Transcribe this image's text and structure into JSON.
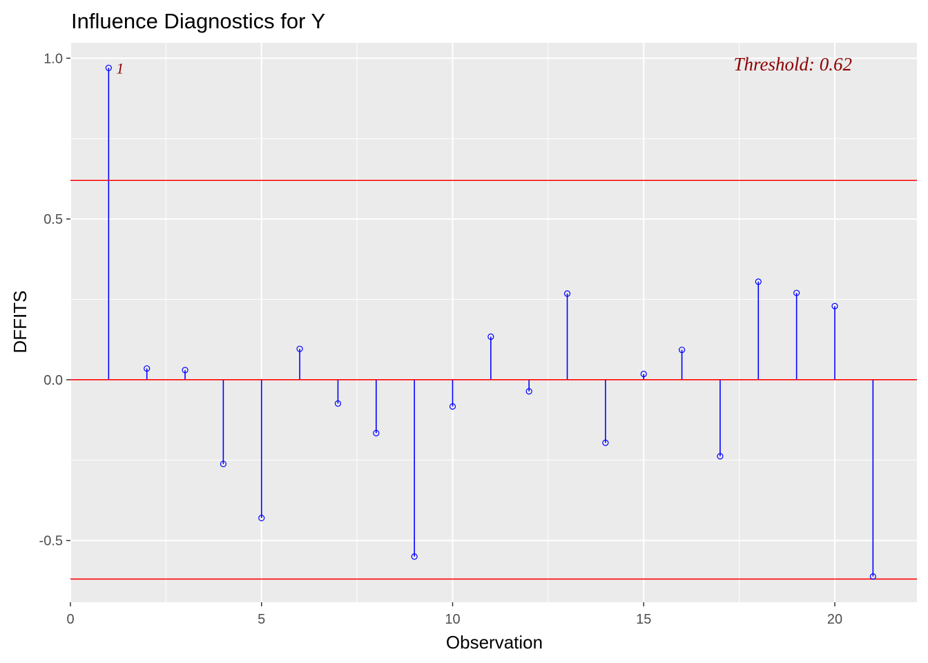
{
  "chart_data": {
    "type": "scatter",
    "subtype": "lollipop",
    "title": "Influence Diagnostics for Y",
    "xlabel": "Observation",
    "ylabel": "DFFITS",
    "xlim": [
      0,
      22.15
    ],
    "ylim": [
      -0.692,
      1.048
    ],
    "x_ticks": [
      0,
      5,
      10,
      15,
      20
    ],
    "x_tick_labels": [
      "0",
      "5",
      "10",
      "15",
      "20"
    ],
    "y_ticks": [
      -0.5,
      0.0,
      0.5,
      1.0
    ],
    "y_tick_labels": [
      "-0.5",
      "0.0",
      "0.5",
      "1.0"
    ],
    "x": [
      1,
      2,
      3,
      4,
      5,
      6,
      7,
      8,
      9,
      10,
      11,
      12,
      13,
      14,
      15,
      16,
      17,
      18,
      19,
      20,
      21
    ],
    "values": [
      0.97,
      0.035,
      0.03,
      -0.262,
      -0.43,
      0.096,
      -0.074,
      -0.166,
      -0.55,
      -0.083,
      0.134,
      -0.036,
      0.268,
      -0.196,
      0.018,
      0.093,
      -0.238,
      0.305,
      0.27,
      0.229,
      -0.612
    ],
    "threshold": 0.62,
    "threshold_lines": [
      0.62,
      -0.62
    ],
    "zero_line": 0,
    "threshold_label": "Threshold: 0.62",
    "point_labels": [
      {
        "x": 1,
        "y": 0.97,
        "text": "1"
      }
    ],
    "grid": true,
    "legend": "none",
    "colors": {
      "panel_background": "#ebebeb",
      "grid": "#ffffff",
      "stem": "#0000ff",
      "point": "#0000ff",
      "reference_line": "#ff0000",
      "annotation": "#8b0000",
      "tick_label": "#4d4d4d"
    }
  }
}
